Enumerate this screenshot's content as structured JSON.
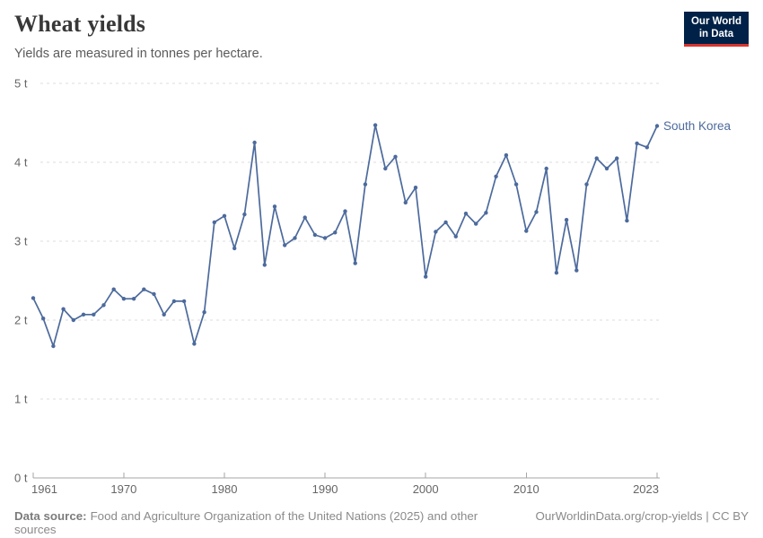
{
  "header": {
    "title": "Wheat yields",
    "subtitle": "Yields are measured in tonnes per hectare.",
    "logo": {
      "line1": "Our World",
      "line2": "in Data"
    }
  },
  "chart_data": {
    "type": "line",
    "title": "Wheat yields",
    "subtitle": "Yields are measured in tonnes per hectare.",
    "entity": "South Korea",
    "unit": "t",
    "ylim": [
      0,
      5
    ],
    "yticks": [
      0,
      1,
      2,
      3,
      4,
      5
    ],
    "ytick_suffix": " t",
    "xticks": [
      1961,
      1970,
      1980,
      1990,
      2000,
      2010,
      2023
    ],
    "grid": true,
    "legend_position": "end-of-line",
    "line_color": "#4C6A9C",
    "x": [
      1961,
      1962,
      1963,
      1964,
      1965,
      1966,
      1967,
      1968,
      1969,
      1970,
      1971,
      1972,
      1973,
      1974,
      1975,
      1976,
      1977,
      1978,
      1979,
      1980,
      1981,
      1982,
      1983,
      1984,
      1985,
      1986,
      1987,
      1988,
      1989,
      1990,
      1991,
      1992,
      1993,
      1994,
      1995,
      1996,
      1997,
      1998,
      1999,
      2000,
      2001,
      2002,
      2003,
      2004,
      2005,
      2006,
      2007,
      2008,
      2009,
      2010,
      2011,
      2012,
      2013,
      2014,
      2015,
      2016,
      2017,
      2018,
      2019,
      2020,
      2021,
      2022,
      2023
    ],
    "values": [
      2.28,
      2.02,
      1.67,
      2.14,
      2.0,
      2.07,
      2.07,
      2.19,
      2.39,
      2.27,
      2.27,
      2.39,
      2.33,
      2.07,
      2.24,
      2.24,
      1.7,
      2.1,
      3.24,
      3.32,
      2.91,
      3.34,
      4.25,
      2.7,
      3.44,
      2.95,
      3.04,
      3.3,
      3.08,
      3.04,
      3.11,
      3.38,
      2.72,
      3.72,
      4.47,
      3.92,
      4.07,
      3.49,
      3.68,
      2.55,
      3.12,
      3.24,
      3.06,
      3.35,
      3.22,
      3.36,
      3.82,
      4.09,
      3.72,
      3.13,
      3.37,
      3.92,
      2.6,
      3.27,
      2.63,
      3.72,
      4.05,
      3.92,
      4.05,
      3.26,
      4.24,
      4.19,
      4.46
    ]
  },
  "footer": {
    "source_label": "Data source:",
    "source_text": "Food and Agriculture Organization of the United Nations (2025) and other sources",
    "link_text": "OurWorldinData.org/crop-yields | CC BY"
  },
  "colors": {
    "line": "#4C6A9C",
    "logo_bg": "#002147",
    "logo_bar": "#d7352e",
    "axis": "#a6a6a6",
    "gridline": "#dcdcdc",
    "tick_label": "#666666"
  }
}
